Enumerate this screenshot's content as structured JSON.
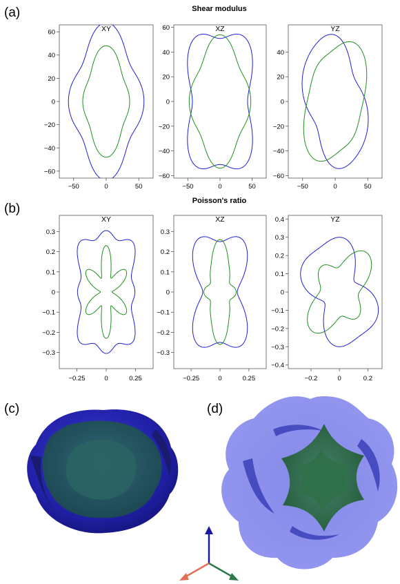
{
  "figure": {
    "panel_labels": [
      "(a)",
      "(b)",
      "(c)",
      "(d)"
    ],
    "colors": {
      "blue": "#1f1fd6",
      "green": "#1f8f1f",
      "axes": "#555555"
    }
  },
  "chart_data": [
    {
      "id": "shear-modulus",
      "type": "line",
      "panel_label": "(a)",
      "title": "Shear modulus",
      "subplots": [
        {
          "title": "XY",
          "xlim": [
            -72,
            72
          ],
          "ylim": [
            -66,
            66
          ],
          "xticks": [
            -50,
            0,
            50
          ],
          "yticks": [
            -60,
            -40,
            -20,
            0,
            20,
            40,
            60
          ],
          "series": [
            {
              "color": "blue",
              "radius_profile": {
                "base": 56,
                "harmonics": [
                  [
                    2,
                    5
                  ],
                  [
                    4,
                    7
                  ]
                ]
              },
              "rotation_deg": 90
            },
            {
              "color": "green",
              "radius_profile": {
                "base": 38,
                "harmonics": [
                  [
                    2,
                    6
                  ],
                  [
                    4,
                    4
                  ]
                ]
              },
              "rotation_deg": 90
            }
          ]
        },
        {
          "title": "XZ",
          "xlim": [
            -72,
            72
          ],
          "ylim": [
            -62,
            62
          ],
          "xticks": [
            -50,
            0,
            50
          ],
          "yticks": [
            -60,
            -40,
            -20,
            0,
            20,
            40,
            60
          ],
          "series": [
            {
              "color": "blue",
              "radius_profile": {
                "base": 56,
                "harmonics": [
                  [
                    2,
                    4
                  ],
                  [
                    4,
                    -9
                  ]
                ]
              },
              "rotation_deg": 90
            },
            {
              "color": "green",
              "radius_profile": {
                "base": 46,
                "harmonics": [
                  [
                    2,
                    3
                  ],
                  [
                    4,
                    5
                  ]
                ]
              },
              "rotation_deg": 90
            }
          ]
        },
        {
          "title": "YZ",
          "xlim": [
            -72,
            72
          ],
          "ylim": [
            -62,
            62
          ],
          "xticks": [
            -50,
            0,
            50
          ],
          "yticks": [
            -60,
            -40,
            -20,
            0,
            20,
            40
          ],
          "series": [
            {
              "color": "blue",
              "radius_profile": {
                "base": 48,
                "harmonics": [
                  [
                    2,
                    10
                  ],
                  [
                    4,
                    -3
                  ]
                ]
              },
              "rotation_deg": 125
            },
            {
              "color": "green",
              "radius_profile": {
                "base": 46,
                "harmonics": [
                  [
                    2,
                    9
                  ],
                  [
                    4,
                    3
                  ]
                ]
              },
              "rotation_deg": 45
            }
          ]
        }
      ]
    },
    {
      "id": "poissons-ratio",
      "type": "line",
      "panel_label": "(b)",
      "title": "Poisson's ratio",
      "subplots": [
        {
          "title": "XY",
          "xlim": [
            -0.4,
            0.4
          ],
          "ylim": [
            -0.38,
            0.38
          ],
          "xticks": [
            -0.25,
            0.0,
            0.25
          ],
          "yticks": [
            -0.3,
            -0.2,
            -0.1,
            0.0,
            0.1,
            0.2,
            0.3
          ],
          "series": [
            {
              "color": "blue",
              "radius_profile": {
                "base": 0.28,
                "harmonics": [
                  [
                    2,
                    0.03
                  ],
                  [
                    4,
                    -0.03
                  ],
                  [
                    8,
                    0.025
                  ]
                ]
              },
              "rotation_deg": 90
            },
            {
              "color": "green",
              "radius_profile": {
                "base": 0.14,
                "harmonics": [
                  [
                    6,
                    0.07
                  ],
                  [
                    2,
                    0.02
                  ]
                ]
              },
              "rotation_deg": 90
            }
          ]
        },
        {
          "title": "XZ",
          "xlim": [
            -0.4,
            0.4
          ],
          "ylim": [
            -0.38,
            0.38
          ],
          "xticks": [
            -0.25,
            0.0,
            0.25
          ],
          "yticks": [
            -0.3,
            -0.2,
            -0.1,
            0.0,
            0.1,
            0.2,
            0.3
          ],
          "series": [
            {
              "color": "blue",
              "radius_profile": {
                "base": 0.26,
                "harmonics": [
                  [
                    2,
                    0.05
                  ],
                  [
                    4,
                    -0.06
                  ]
                ]
              },
              "rotation_deg": 90
            },
            {
              "color": "green",
              "radius_profile": {
                "base": 0.15,
                "harmonics": [
                  [
                    2,
                    0.06
                  ],
                  [
                    4,
                    0.04
                  ],
                  [
                    8,
                    0.01
                  ]
                ]
              },
              "rotation_deg": 90
            }
          ]
        },
        {
          "title": "YZ",
          "xlim": [
            -0.36,
            0.3
          ],
          "ylim": [
            -0.42,
            0.42
          ],
          "xticks": [
            -0.2,
            0.0,
            0.2
          ],
          "yticks": [
            -0.4,
            -0.3,
            -0.2,
            -0.1,
            0.0,
            0.1,
            0.2,
            0.3,
            0.4
          ],
          "series": [
            {
              "color": "blue",
              "radius_profile": {
                "base": 0.24,
                "harmonics": [
                  [
                    2,
                    0.08
                  ],
                  [
                    4,
                    -0.04
                  ]
                ]
              },
              "rotation_deg": 120
            },
            {
              "color": "green",
              "radius_profile": {
                "base": 0.19,
                "harmonics": [
                  [
                    2,
                    0.05
                  ],
                  [
                    4,
                    0.05
                  ]
                ]
              },
              "rotation_deg": 45
            }
          ]
        }
      ]
    }
  ],
  "surfaces": {
    "c": {
      "label": "(c)"
    },
    "d": {
      "label": "(d)"
    }
  }
}
